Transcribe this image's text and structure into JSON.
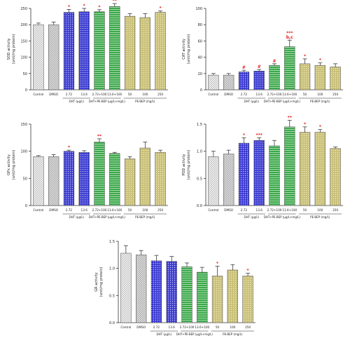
{
  "palette": {
    "control": "#e8e8e8",
    "dmso": "#c8c8c8",
    "dht": "#3a3ad0",
    "comb": "#3aa84a",
    "pe": "#c9c07a",
    "star": "#e0201e",
    "axis": "#333333"
  },
  "chart_data": [
    {
      "type": "bar",
      "ylabel": "SOD activity\n(unit/mg protein)",
      "ylim": [
        0,
        250
      ],
      "yticks": [
        0,
        50,
        100,
        150,
        200,
        250
      ],
      "ytick_labels": [
        "0",
        "50",
        "100",
        "150",
        "200",
        "250"
      ],
      "categories": [
        "Control",
        "DMSO",
        "2.72",
        "13.6",
        "2.72+100",
        "13.6+100",
        "50",
        "100",
        "250"
      ],
      "groups": [
        "control",
        "dmso",
        "dht",
        "dht",
        "comb",
        "comb",
        "pe",
        "pe",
        "pe"
      ],
      "values": [
        200,
        200,
        238,
        240,
        240,
        256,
        226,
        222,
        238
      ],
      "errors": [
        5,
        8,
        9,
        10,
        6,
        9,
        8,
        12,
        4
      ],
      "marks": [
        "",
        "",
        "*",
        "*",
        "*",
        "**",
        "",
        "",
        "*"
      ],
      "group_labels": [
        {
          "label": "DHT (μg/L)",
          "from": 2,
          "to": 3
        },
        {
          "label": "DHT+PE-BEP (μg/L+mg/L)",
          "from": 4,
          "to": 5
        },
        {
          "label": "PE-BEP (mg/L)",
          "from": 6,
          "to": 8
        }
      ]
    },
    {
      "type": "bar",
      "ylabel": "CAT activity\n(unit/mg protein)",
      "ylim": [
        0,
        100
      ],
      "yticks": [
        0,
        20,
        40,
        60,
        80,
        100
      ],
      "ytick_labels": [
        "0",
        "20",
        "40",
        "60",
        "80",
        "100"
      ],
      "categories": [
        "Control",
        "DMSO",
        "2.72",
        "13.6",
        "2.72+100",
        "13.6+100",
        "50",
        "100",
        "250"
      ],
      "groups": [
        "control",
        "dmso",
        "dht",
        "dht",
        "comb",
        "comb",
        "pe",
        "pe",
        "pe"
      ],
      "values": [
        18,
        18,
        22,
        23,
        30,
        53,
        32,
        30,
        28
      ],
      "errors": [
        2,
        2,
        2,
        2,
        2,
        8,
        6,
        3,
        4
      ],
      "marks": [
        "",
        "",
        "#",
        "#",
        "#",
        "***\nb,c",
        "*",
        "*",
        ""
      ],
      "group_labels": [
        {
          "label": "DHT (μg/L)",
          "from": 2,
          "to": 3
        },
        {
          "label": "DHT+PE-BEP (μg/L+mg/L)",
          "from": 4,
          "to": 5
        },
        {
          "label": "PE-BEP (mg/L)",
          "from": 6,
          "to": 8
        }
      ]
    },
    {
      "type": "bar",
      "ylabel": "GPx activity\n(unit/mg protein)",
      "ylim": [
        0,
        150
      ],
      "yticks": [
        0,
        50,
        100,
        150
      ],
      "ytick_labels": [
        "0",
        "50",
        "100",
        "150"
      ],
      "categories": [
        "Control",
        "DMSO",
        "2.72",
        "13.6",
        "2.72+100",
        "13.6+100",
        "50",
        "100",
        "250"
      ],
      "groups": [
        "control",
        "dmso",
        "dht",
        "dht",
        "comb",
        "comb",
        "pe",
        "pe",
        "pe"
      ],
      "values": [
        90,
        90,
        100,
        98,
        117,
        96,
        86,
        106,
        98
      ],
      "errors": [
        2,
        4,
        2,
        3,
        6,
        2,
        4,
        11,
        4
      ],
      "marks": [
        "",
        "",
        "*",
        "",
        "**",
        "",
        "",
        "",
        ""
      ],
      "group_labels": [
        {
          "label": "DHT (μg/L)",
          "from": 2,
          "to": 3
        },
        {
          "label": "DHT+PE-BEP (μg/L+mg/L)",
          "from": 4,
          "to": 5
        },
        {
          "label": "PE-BEP (mg/L)",
          "from": 6,
          "to": 8
        }
      ]
    },
    {
      "type": "bar",
      "ylabel": "POD activity\n(unit/mg protein)",
      "ylim": [
        0,
        1.5
      ],
      "yticks": [
        0,
        0.5,
        1.0,
        1.5
      ],
      "ytick_labels": [
        "0.0",
        "0.5",
        "1.0",
        "1.5"
      ],
      "categories": [
        "Control",
        "DMSO",
        "2.72",
        "13.6",
        "2.72+100",
        "13.6+100",
        "50",
        "100",
        "250"
      ],
      "groups": [
        "control",
        "dmso",
        "dht",
        "dht",
        "comb",
        "comb",
        "pe",
        "pe",
        "pe"
      ],
      "values": [
        0.9,
        0.95,
        1.15,
        1.2,
        1.1,
        1.45,
        1.35,
        1.35,
        1.05
      ],
      "errors": [
        0.1,
        0.07,
        0.1,
        0.05,
        0.1,
        0.12,
        0.1,
        0.05,
        0.03
      ],
      "marks": [
        "",
        "",
        "*",
        "***",
        "",
        "**",
        "*",
        "*",
        ""
      ],
      "group_labels": [
        {
          "label": "DHT (μg/L)",
          "from": 2,
          "to": 3
        },
        {
          "label": "DHT+PE-BEP (μg/L+mg/L)",
          "from": 4,
          "to": 5
        },
        {
          "label": "PE-BEP (mg/L)",
          "from": 6,
          "to": 8
        }
      ]
    },
    {
      "type": "bar",
      "ylabel": "GR activity\n(unit/mg protein)",
      "ylim": [
        0,
        1.5
      ],
      "yticks": [
        0,
        0.5,
        1.0,
        1.5
      ],
      "ytick_labels": [
        "0.0",
        "0.5",
        "1.0",
        "1.5"
      ],
      "categories": [
        "Control",
        "DMSO",
        "2.72",
        "13.6",
        "2.72+100",
        "13.6+100",
        "50",
        "100",
        "250"
      ],
      "groups": [
        "control",
        "dmso",
        "dht",
        "dht",
        "comb",
        "comb",
        "pe",
        "pe",
        "pe"
      ],
      "values": [
        1.28,
        1.25,
        1.14,
        1.13,
        1.03,
        0.93,
        0.86,
        0.97,
        0.86
      ],
      "errors": [
        0.14,
        0.08,
        0.1,
        0.09,
        0.07,
        0.09,
        0.18,
        0.1,
        0.05
      ],
      "marks": [
        "",
        "",
        "",
        "",
        "",
        "",
        "*",
        "",
        "*"
      ],
      "group_labels": [
        {
          "label": "DHT (μg/L)",
          "from": 2,
          "to": 3
        },
        {
          "label": "DHT+PE-BEP (μg/L+mg/L)",
          "from": 4,
          "to": 5
        },
        {
          "label": "PE-BEP (mg/L)",
          "from": 6,
          "to": 8
        }
      ]
    }
  ]
}
